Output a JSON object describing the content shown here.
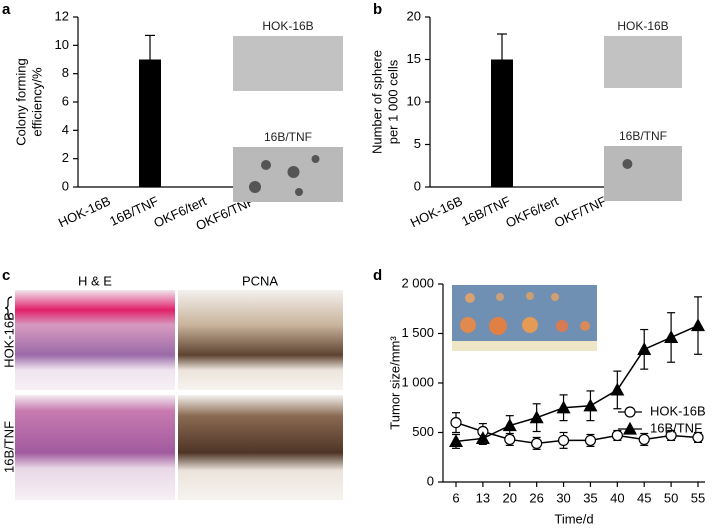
{
  "chart_data": [
    {
      "type": "bar",
      "panel": "a",
      "y_label": [
        "Colony forming",
        "efficiency/%"
      ],
      "categories": [
        "HOK-16B",
        "16B/TNF",
        "OKF6/tert",
        "OKF6/TNF"
      ],
      "values": [
        0,
        9,
        0,
        0
      ],
      "errors": [
        0,
        1.7,
        0,
        0
      ],
      "color": "#000000",
      "ylim": [
        0,
        12
      ],
      "yticks": [
        0,
        2,
        4,
        6,
        8,
        10,
        12
      ],
      "insets": [
        "HOK-16B",
        "16B/TNF"
      ]
    },
    {
      "type": "bar",
      "panel": "b",
      "y_label": [
        "Number of sphere",
        "per 1 000 cells"
      ],
      "categories": [
        "HOK-16B",
        "16B/TNF",
        "OKF6/tert",
        "OKF/TNF"
      ],
      "values": [
        0,
        15,
        0,
        0
      ],
      "errors": [
        0,
        3,
        0,
        0
      ],
      "color": "#000000",
      "ylim": [
        0,
        20
      ],
      "yticks": [
        0,
        5,
        10,
        15,
        20
      ],
      "insets": [
        "HOK-16B",
        "16B/TNF"
      ]
    },
    {
      "type": "line",
      "panel": "d",
      "y_label": "Tumor size/mm³",
      "x_label": "Time/d",
      "categories": [
        "6",
        "13",
        "20",
        "26",
        "30",
        "35",
        "40",
        "45",
        "50",
        "55"
      ],
      "series": [
        {
          "name": "HOK-16B",
          "color": "#000000",
          "marker": "circle",
          "filled": false,
          "values": [
            600,
            510,
            430,
            390,
            420,
            420,
            470,
            430,
            470,
            450
          ],
          "errors": [
            100,
            80,
            60,
            60,
            80,
            60,
            50,
            60,
            50,
            50
          ]
        },
        {
          "name": "16B/TNF",
          "color": "#000000",
          "marker": "triangle",
          "filled": true,
          "values": [
            410,
            440,
            570,
            650,
            750,
            770,
            930,
            1340,
            1460,
            1580
          ],
          "errors": [
            70,
            60,
            100,
            140,
            130,
            150,
            190,
            200,
            250,
            290
          ]
        }
      ],
      "ylim": [
        0,
        2000
      ],
      "yticks": [
        0,
        500,
        {
          "value": 1000,
          "label": "1 000"
        },
        {
          "value": 1500,
          "label": "1 500"
        },
        {
          "value": 2000,
          "label": "2 000"
        }
      ],
      "legend": "right"
    }
  ],
  "histology": {
    "panel": "c",
    "columns": [
      "H & E",
      "PCNA"
    ],
    "rows": [
      "HOK-16B",
      "16B/TNF"
    ]
  }
}
